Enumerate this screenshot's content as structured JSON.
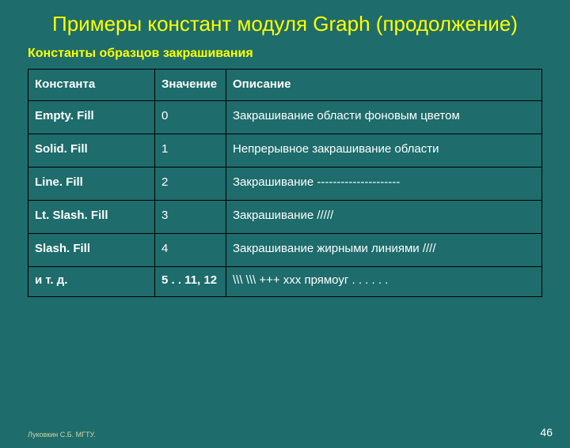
{
  "slide": {
    "title": "Примеры констант модуля Graph (продолжение)",
    "subtitle": "Константы образцов закрашивания"
  },
  "table": {
    "headers": {
      "constant": "Константа",
      "value": "Значение",
      "description": "Описание"
    },
    "rows": [
      {
        "constant": "Empty. Fill",
        "value": "0",
        "description": "Закрашивание области фоновым цветом"
      },
      {
        "constant": "Solid. Fill",
        "value": "1",
        "description": "Непрерывное закрашивание области"
      },
      {
        "constant": "Line. Fill",
        "value": "2",
        "description": "Закрашивание ---------------------"
      },
      {
        "constant": "Lt. Slash. Fill",
        "value": "3",
        "description": "Закрашивание /////"
      },
      {
        "constant": "Slash. Fill",
        "value": "4",
        "description": "Закрашивание жирными линиями ////"
      }
    ],
    "etc": {
      "constant": "и т. д.",
      "value": "5 . . 11, 12",
      "description": "\\\\\\   \\\\\\   +++   xxx     прямоуг  .  .  .     .  .  ."
    }
  },
  "footer": {
    "author": "Луковкин С.Б. МГТУ.",
    "page": "46"
  },
  "colors": {
    "background": "#1e6c6c",
    "accent": "#ffff00",
    "text": "#ffffff",
    "border": "#000000"
  }
}
